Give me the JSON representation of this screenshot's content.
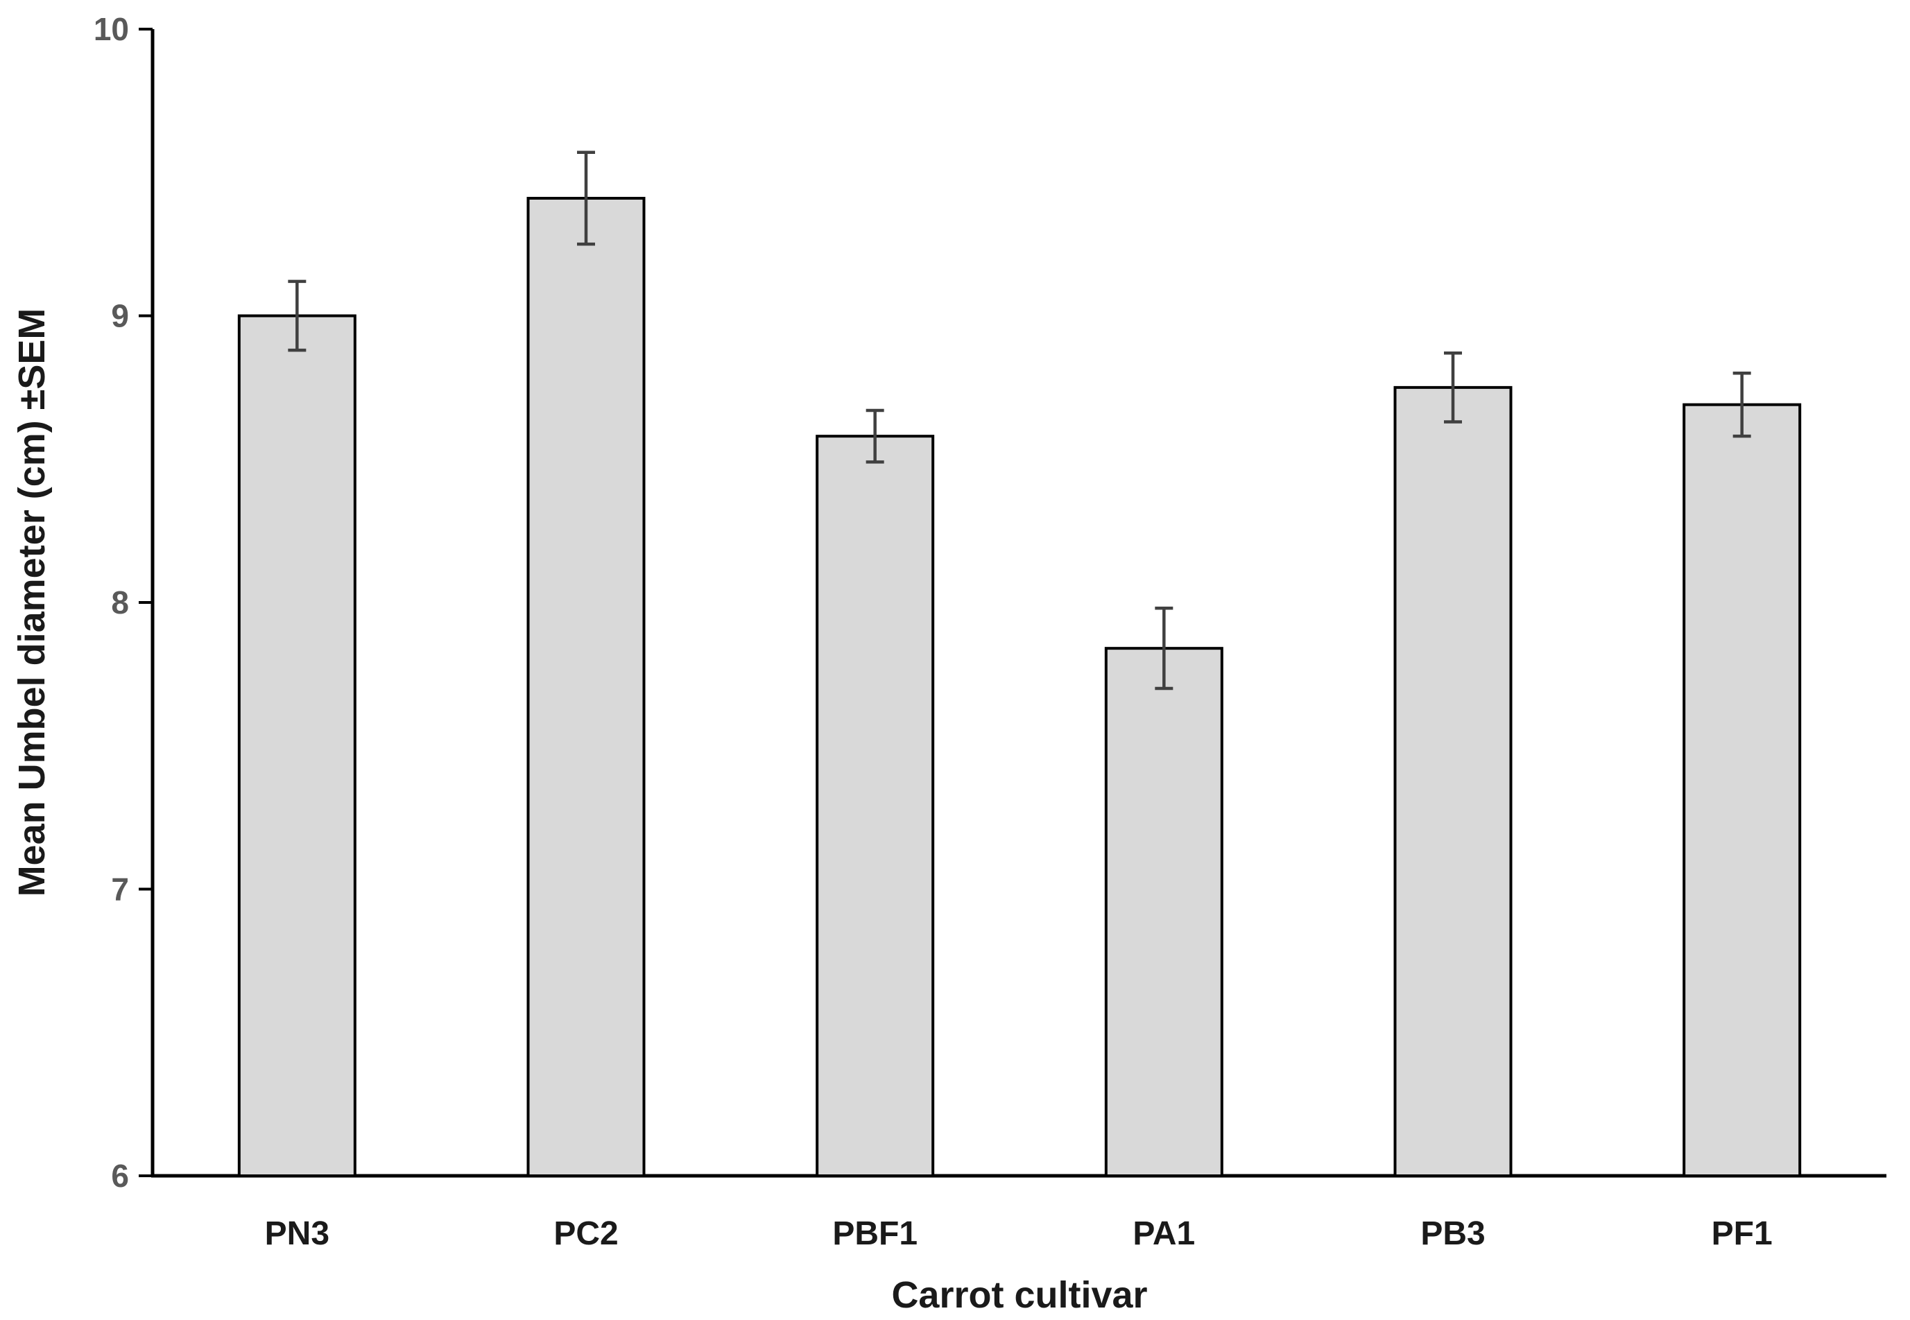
{
  "chart_data": {
    "type": "bar",
    "title": "",
    "xlabel": "Carrot cultivar",
    "ylabel": "Mean Umbel diameter (cm) ±SEM",
    "categories": [
      "PN3",
      "PC2",
      "PBF1",
      "PA1",
      "PB3",
      "PF1"
    ],
    "values": [
      9.0,
      9.41,
      8.58,
      7.84,
      8.75,
      8.69
    ],
    "errors_sem": [
      0.12,
      0.16,
      0.09,
      0.14,
      0.12,
      0.11
    ],
    "ylim": [
      6,
      10
    ],
    "yticks": [
      6,
      7,
      8,
      9,
      10
    ],
    "grid": "off",
    "legend": "none",
    "error_bars": "plus-minus SEM, capped",
    "colors": {
      "bar_fill": "#d9d9d9",
      "bar_outline": "#000000",
      "error_bar": "#404040",
      "tick_label": "#595959",
      "axis_line": "#000000",
      "axis_title": "#1a1a1a",
      "background": "#ffffff"
    }
  }
}
